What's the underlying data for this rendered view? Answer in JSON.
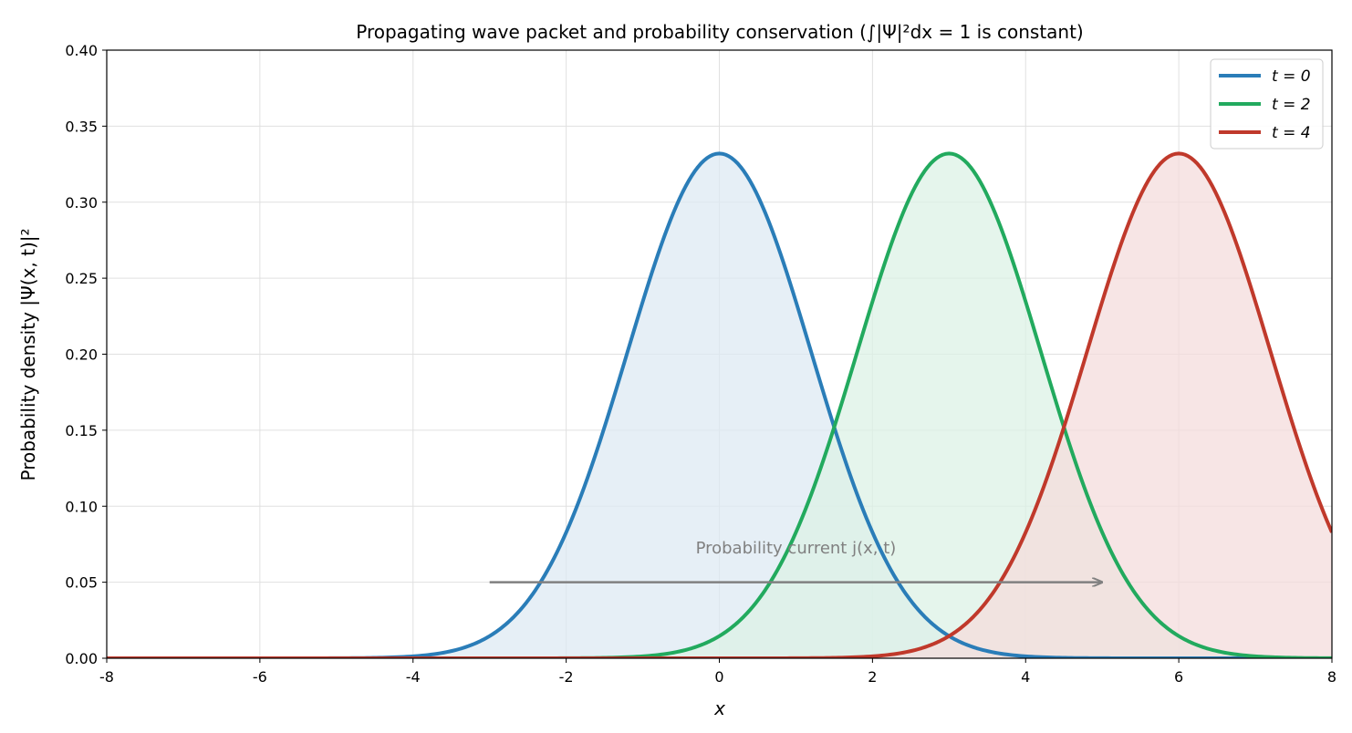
{
  "chart_data": {
    "type": "line",
    "title": "Propagating wave packet and probability conservation (∫|Ψ|²dx = 1 is constant)",
    "xlabel": "x",
    "ylabel": "Probability density |Ψ(x, t)|²",
    "xlim": [
      -8,
      8
    ],
    "ylim": [
      0,
      0.4
    ],
    "xticks": [
      -8,
      -6,
      -4,
      -2,
      0,
      2,
      4,
      6,
      8
    ],
    "xtick_labels": [
      "-8",
      "-6",
      "-4",
      "-2",
      "0",
      "2",
      "4",
      "6",
      "8"
    ],
    "yticks": [
      0,
      0.05,
      0.1,
      0.15,
      0.2,
      0.25,
      0.3,
      0.35,
      0.4
    ],
    "ytick_labels": [
      "0.00",
      "0.05",
      "0.10",
      "0.15",
      "0.20",
      "0.25",
      "0.30",
      "0.35",
      "0.40"
    ],
    "grid": true,
    "legend_position": "top-right",
    "series": [
      {
        "name": "t = 0",
        "center": 0,
        "sigma": 1.2,
        "peak": 0.332,
        "color": "#2a7db8",
        "fill": "#dde9f3"
      },
      {
        "name": "t = 2",
        "center": 3,
        "sigma": 1.2,
        "peak": 0.332,
        "color": "#22aa5e",
        "fill": "#dcf1e5"
      },
      {
        "name": "t = 4",
        "center": 6,
        "sigma": 1.2,
        "peak": 0.332,
        "color": "#c0392b",
        "fill": "#f4dcdc"
      }
    ],
    "annotations": [
      {
        "text": "Probability current j(x, t)",
        "arrow_from": [
          -3,
          0.05
        ],
        "arrow_to": [
          5,
          0.05
        ],
        "label_at": [
          1.0,
          0.069
        ],
        "color": "#808080"
      }
    ]
  }
}
